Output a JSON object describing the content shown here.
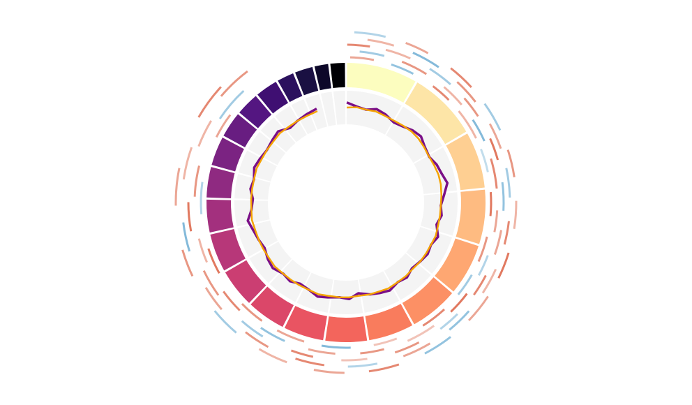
{
  "chart_data": {
    "type": "circos",
    "segments": [
      249,
      243,
      198,
      191,
      181,
      171,
      159,
      146,
      141,
      136,
      135,
      134,
      115,
      107,
      102,
      90,
      81,
      78,
      59,
      63,
      48,
      51
    ],
    "segment_colors": [
      "#fcfdbf",
      "#fde5a7",
      "#fecf92",
      "#febb81",
      "#fea772",
      "#fc9065",
      "#f97c5d",
      "#f3655c",
      "#e95462",
      "#db4769",
      "#cb3e72",
      "#b73779",
      "#a3307e",
      "#8f2a81",
      "#7b2382",
      "#681d81",
      "#541681",
      "#3f0f72",
      "#2b115e",
      "#1a1042",
      "#0d0829",
      "#000004"
    ],
    "x": [
      0,
      50,
      100,
      150,
      200,
      250,
      300,
      350,
      400,
      450,
      500,
      550,
      600,
      650,
      700,
      750,
      800,
      850,
      900,
      950,
      1000,
      1050,
      1100,
      1150,
      1200,
      1250,
      1300,
      1350,
      1400,
      1450,
      1500,
      1550,
      1600,
      1650,
      1700,
      1750,
      1800,
      1850,
      1900,
      1950,
      2000,
      2050,
      2100,
      2150,
      2200,
      2250,
      2300,
      2350,
      2400,
      2450,
      2500,
      2550,
      2600,
      2650,
      2700,
      2750
    ],
    "xlim": [
      0,
      2881
    ],
    "ylim": [
      -1,
      1
    ],
    "series": [
      {
        "color": "#7b0f87",
        "values": [
          0.3,
          0.1,
          0.0,
          0.2,
          0.1,
          -0.1,
          0.0,
          0.2,
          0.3,
          0.1,
          0.0,
          0.2,
          0.3,
          0.5,
          0.2,
          0.0,
          0.1,
          -0.1,
          0.2,
          0.0,
          0.1,
          0.0,
          -0.1,
          0.1,
          0.0,
          0.2,
          0.1,
          0.0,
          -0.2,
          0.1,
          0.0,
          0.1,
          0.2,
          0.0,
          -0.1,
          0.1,
          0.0,
          0.2,
          0.1,
          -0.1,
          0.0,
          0.1,
          0.3,
          0.0,
          -0.1,
          0.1,
          0.0,
          0.2,
          0.1,
          0.0,
          0.1,
          0.2,
          -0.1,
          0.0,
          0.1,
          0.2
        ]
      },
      {
        "color": "#f5a300",
        "values": [
          0.0,
          0.05,
          0.0,
          0.05,
          0.0,
          0.0,
          0.05,
          0.1,
          0.1,
          0.05,
          0.0,
          0.05,
          0.1,
          0.1,
          0.05,
          0.0,
          0.0,
          0.0,
          0.05,
          0.0,
          0.0,
          0.0,
          -0.05,
          0.0,
          0.0,
          0.05,
          0.0,
          0.0,
          -0.05,
          0.0,
          0.0,
          0.0,
          0.05,
          0.0,
          0.0,
          0.0,
          0.0,
          0.05,
          0.0,
          0.0,
          0.0,
          0.0,
          0.05,
          0.0,
          0.0,
          0.0,
          0.0,
          0.05,
          0.0,
          0.0,
          0.0,
          0.05,
          0.0,
          0.0,
          0.0,
          0.05
        ]
      }
    ],
    "heatmap_colors": [
      "#4a9ac8",
      "#ffffff",
      "#d8502f"
    ],
    "heatmap": [
      {
        "starts": [
          10,
          150,
          300,
          420,
          560,
          700,
          850,
          980,
          1120,
          1300,
          1450,
          1600,
          1750,
          1950,
          2150,
          2400
        ],
        "ends": [
          90,
          230,
          370,
          520,
          640,
          780,
          930,
          1060,
          1210,
          1380,
          1540,
          1690,
          1830,
          2040,
          2250,
          2480
        ],
        "values": [
          0.6,
          -0.7,
          0.8,
          0.5,
          -0.4,
          0.9,
          0.7,
          -0.6,
          0.8,
          0.4,
          -0.8,
          0.6,
          0.7,
          0.9,
          -0.5,
          0.6
        ]
      },
      {
        "starts": [
          40,
          180,
          330,
          470,
          600,
          760,
          900,
          1040,
          1180,
          1350,
          1500,
          1660,
          1820,
          2000,
          2200,
          2450
        ],
        "ends": [
          120,
          260,
          410,
          540,
          690,
          830,
          970,
          1110,
          1270,
          1420,
          1580,
          1740,
          1900,
          2080,
          2300,
          2560
        ],
        "values": [
          -0.6,
          0.7,
          0.5,
          -0.8,
          0.8,
          0.6,
          -0.5,
          0.9,
          0.4,
          0.7,
          0.6,
          -0.7,
          0.8,
          0.5,
          0.7,
          -0.6
        ]
      },
      {
        "starts": [
          0,
          120,
          260,
          400,
          540,
          680,
          820,
          960,
          1100,
          1240,
          1400,
          1560,
          1720,
          1900,
          2100,
          2350
        ],
        "ends": [
          70,
          200,
          340,
          470,
          610,
          760,
          890,
          1030,
          1170,
          1320,
          1480,
          1630,
          1800,
          1980,
          2190,
          2430
        ],
        "values": [
          0.8,
          0.5,
          -0.6,
          0.7,
          0.9,
          -0.7,
          0.6,
          0.8,
          -0.5,
          0.7,
          0.4,
          0.8,
          -0.6,
          0.7,
          0.9,
          0.5
        ]
      },
      {
        "starts": [
          60,
          200,
          350,
          500,
          640,
          790,
          930,
          1070,
          1220,
          1380,
          1530,
          1690,
          1860,
          2050,
          2250,
          2500
        ],
        "ends": [
          140,
          280,
          430,
          580,
          720,
          860,
          1010,
          1150,
          1300,
          1460,
          1610,
          1770,
          1940,
          2130,
          2340,
          2600
        ],
        "values": [
          0.5,
          -0.8,
          0.7,
          0.6,
          -0.6,
          0.8,
          0.5,
          -0.7,
          0.6,
          -0.5,
          0.8,
          0.7,
          0.6,
          -0.8,
          0.5,
          0.7
        ]
      },
      {
        "starts": [
          20,
          170,
          310,
          450,
          590,
          730,
          880,
          1010,
          1160,
          1320,
          1470,
          1630,
          1790,
          1980,
          2180,
          2420
        ],
        "ends": [
          110,
          240,
          390,
          530,
          670,
          810,
          950,
          1090,
          1240,
          1400,
          1550,
          1710,
          1870,
          2060,
          2280,
          2520
        ],
        "values": [
          -0.5,
          0.6,
          0.8,
          -0.6,
          0.7,
          0.5,
          0.9,
          0.6,
          -0.7,
          0.8,
          0.6,
          0.5,
          -0.6,
          0.7,
          0.6,
          0.8
        ]
      }
    ]
  }
}
